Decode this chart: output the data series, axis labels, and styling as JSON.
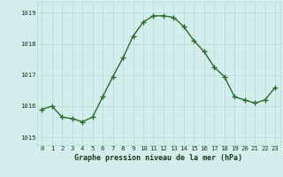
{
  "hours": [
    0,
    1,
    2,
    3,
    4,
    5,
    6,
    7,
    8,
    9,
    10,
    11,
    12,
    13,
    14,
    15,
    16,
    17,
    18,
    19,
    20,
    21,
    22,
    23
  ],
  "pressure": [
    1015.9,
    1016.0,
    1015.65,
    1015.6,
    1015.5,
    1015.65,
    1016.3,
    1016.95,
    1017.55,
    1018.25,
    1018.7,
    1018.9,
    1018.9,
    1018.85,
    1018.55,
    1018.1,
    1017.75,
    1017.25,
    1016.95,
    1016.3,
    1016.2,
    1016.1,
    1016.2,
    1016.6
  ],
  "line_color": "#2d6a2d",
  "marker_color": "#2d6a2d",
  "bg_color": "#d4eeed",
  "grid_major_color": "#b8d8d4",
  "grid_minor_color": "#c8e4e0",
  "text_color": "#1a3a1a",
  "xlabel": "Graphe pression niveau de la mer (hPa)",
  "yticks": [
    1015,
    1016,
    1017,
    1018,
    1019
  ],
  "xticks": [
    0,
    1,
    2,
    3,
    4,
    5,
    6,
    7,
    8,
    9,
    10,
    11,
    12,
    13,
    14,
    15,
    16,
    17,
    18,
    19,
    20,
    21,
    22,
    23
  ],
  "ylim": [
    1014.75,
    1019.35
  ],
  "xlim": [
    -0.5,
    23.5
  ],
  "tick_fontsize": 5.2,
  "xlabel_fontsize": 6.0
}
